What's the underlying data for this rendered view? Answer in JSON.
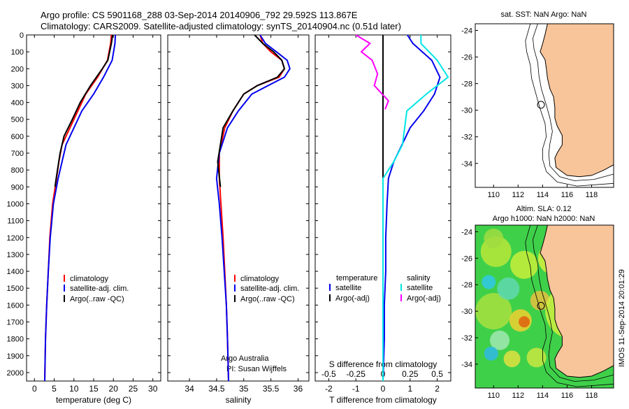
{
  "header": {
    "line1": "Argo profile: CS 5901168_288 03-Sep-2014 20140906_792 29.592S 113.867E",
    "line2": "Climatology: CARS2009. Satellite-adjusted climatology: synTS_20140904.nc (0.51d later)"
  },
  "colors": {
    "climatology": "#ff0000",
    "satellite": "#0000ee",
    "argo": "#000000",
    "salinity_sat": "#00e5e5",
    "salinity_argo": "#ff00ff",
    "land": "#f8c49a"
  },
  "chart_data": [
    {
      "type": "line",
      "xlabel": "temperature (deg C)",
      "ylabel": "",
      "xlim": [
        -2,
        32
      ],
      "ylim": [
        0,
        2050
      ],
      "xticks": [
        0,
        5,
        10,
        15,
        20,
        25,
        30
      ],
      "yticks": [
        0,
        100,
        200,
        300,
        400,
        500,
        600,
        700,
        800,
        900,
        1000,
        1100,
        1200,
        1300,
        1400,
        1500,
        1600,
        1700,
        1800,
        1900,
        2000
      ],
      "legend": [
        "climatology",
        "satellite-adj. clim.",
        "Argo(..raw -QC)"
      ],
      "series": [
        {
          "name": "climatology",
          "x": [
            19.5,
            19.3,
            18.5,
            16.0,
            13.0,
            11.0,
            9.0,
            7.0,
            6.2,
            5.6,
            4.6,
            3.9,
            3.5,
            3.1,
            2.8,
            2.6
          ],
          "y": [
            0,
            50,
            150,
            250,
            350,
            450,
            550,
            650,
            750,
            850,
            1000,
            1200,
            1400,
            1600,
            1800,
            2050
          ]
        },
        {
          "name": "satellite-adj. clim.",
          "x": [
            20.5,
            20.4,
            19.7,
            17.5,
            15.0,
            12.0,
            10.0,
            8.0,
            7.0,
            6.0,
            4.8,
            4.0,
            3.5,
            3.1,
            2.8,
            2.6
          ],
          "y": [
            0,
            50,
            150,
            250,
            350,
            450,
            550,
            650,
            750,
            850,
            1000,
            1200,
            1400,
            1600,
            1800,
            2050
          ]
        },
        {
          "name": "Argo(..raw -QC)",
          "x": [
            19.8,
            19.5,
            18.6,
            17.2,
            14.2,
            11.6,
            9.6,
            7.5,
            6.5,
            5.5,
            5.2
          ],
          "y": [
            0,
            50,
            150,
            200,
            300,
            400,
            500,
            600,
            700,
            850,
            900
          ]
        }
      ]
    },
    {
      "type": "line",
      "xlabel": "salinity",
      "ylabel": "",
      "xlim": [
        33.6,
        36.2
      ],
      "ylim": [
        0,
        2050
      ],
      "xticks": [
        34,
        34.5,
        35,
        35.5,
        36
      ],
      "legend": [
        "climatology",
        "satellite-adj. clim.",
        "Argo(..raw -QC)"
      ],
      "annotation": [
        "Argo Australia",
        "PI: Susan Wijffels"
      ],
      "series": [
        {
          "name": "climatology",
          "x": [
            35.3,
            35.35,
            35.5,
            35.7,
            35.75,
            35.65,
            35.25,
            35.0,
            34.8,
            34.65,
            34.55,
            34.55,
            34.58,
            34.62,
            34.65,
            34.68,
            34.7,
            34.72
          ],
          "y": [
            0,
            50,
            100,
            150,
            200,
            250,
            300,
            350,
            450,
            550,
            700,
            850,
            1000,
            1200,
            1400,
            1600,
            1800,
            2050
          ]
        },
        {
          "name": "satellite-adj. clim.",
          "x": [
            35.3,
            35.4,
            35.6,
            35.8,
            35.85,
            35.75,
            35.45,
            35.15,
            34.9,
            34.7,
            34.55,
            34.5,
            34.55,
            34.6,
            34.64,
            34.68,
            34.7,
            34.72
          ],
          "y": [
            0,
            50,
            100,
            150,
            200,
            250,
            300,
            350,
            450,
            550,
            700,
            850,
            1000,
            1200,
            1400,
            1600,
            1800,
            2050
          ]
        },
        {
          "name": "Argo(..raw -QC)",
          "x": [
            35.2,
            35.35,
            35.55,
            35.7,
            35.75,
            35.62,
            35.25,
            35.0,
            34.8,
            34.62,
            34.52,
            34.57
          ],
          "y": [
            0,
            50,
            100,
            150,
            200,
            250,
            300,
            350,
            450,
            550,
            750,
            900
          ]
        }
      ]
    },
    {
      "type": "line",
      "xlabel": "T difference from climatology",
      "ylabel": "",
      "xlim": [
        -2.5,
        2.5
      ],
      "ylim": [
        0,
        2050
      ],
      "xticks": [
        -2,
        -1,
        0,
        1,
        2
      ],
      "top_label": "S difference from climatology",
      "top_ticks": [
        "-0.5",
        "-0.25",
        "0",
        "0.25",
        "0.5"
      ],
      "legend_titles": [
        "temperature",
        "salinity"
      ],
      "legend_left": [
        "satellite",
        "Argo(-adj)"
      ],
      "legend_right": [
        "satellite",
        "Argo(-adj)"
      ],
      "series": [
        {
          "name": "temperature satellite",
          "x": [
            0.9,
            1.1,
            1.8,
            2.1,
            1.9,
            1.5,
            1.0,
            0.7,
            0.4,
            0.2,
            0.15,
            0.1,
            0.1,
            0.05,
            0.05,
            0.0
          ],
          "y": [
            0,
            50,
            150,
            250,
            350,
            450,
            550,
            650,
            750,
            850,
            1000,
            1200,
            1400,
            1600,
            1800,
            2050
          ]
        },
        {
          "name": "temperature Argo(-adj)",
          "x": [
            0.0,
            0.0
          ],
          "y": [
            0,
            2050
          ]
        },
        {
          "name": "salinity satellite",
          "x": [
            0.35,
            0.35,
            0.5,
            0.6,
            0.4,
            0.22,
            0.2,
            0.18,
            0.1,
            0.0,
            0.0,
            0.0,
            0.0,
            0.0,
            0.0,
            0.0
          ],
          "y": [
            0,
            50,
            150,
            250,
            350,
            450,
            550,
            650,
            750,
            850,
            1000,
            1200,
            1400,
            1600,
            1800,
            2050
          ]
        },
        {
          "name": "salinity Argo(-adj)",
          "x": [
            -0.25,
            -0.12,
            -0.2,
            -0.1,
            -0.05,
            -0.08,
            0.05,
            0.02
          ],
          "y": [
            0,
            50,
            100,
            150,
            230,
            300,
            390,
            440
          ]
        }
      ]
    }
  ],
  "map_sst": {
    "title": "sat. SST: NaN  Argo: NaN",
    "xticks": [
      110,
      112,
      114,
      116,
      118
    ],
    "yticks": [
      -24,
      -26,
      -28,
      -30,
      -32,
      -34
    ]
  },
  "map_sla": {
    "title1": "Altim. SLA: 0.12",
    "title2": "Argo h1000: NaN  h2000: NaN",
    "xticks": [
      110,
      112,
      114,
      116,
      118
    ],
    "yticks": [
      -24,
      -26,
      -28,
      -30,
      -32,
      -34
    ]
  },
  "footer": {
    "stamp": "IMOS 11-Sep-2014 20:01:29"
  }
}
